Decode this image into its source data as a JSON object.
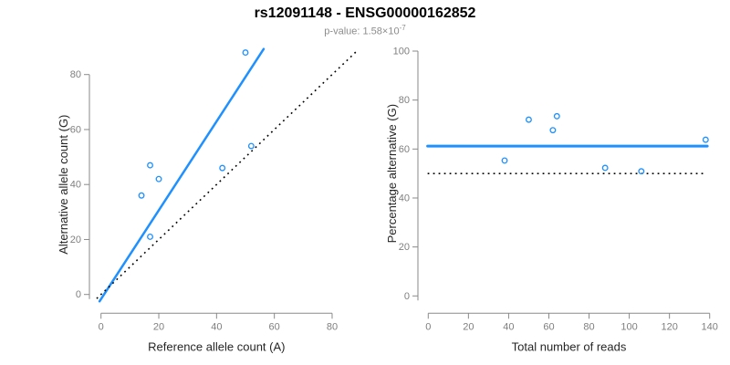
{
  "title": "rs12091148 - ENSG00000162852",
  "subtitle": {
    "text": "p-value: 1.58×10",
    "exponent": "-7"
  },
  "colors": {
    "accent_blue": "#1E90FF",
    "dotted_black": "#000000",
    "axis_line_gray": "#8a8a8a",
    "tick_label_gray": "#7f7f7f",
    "axis_title_dark": "#262626",
    "title_black": "#000000",
    "subtitle_gray": "#8c8c8c"
  },
  "chart_data": [
    {
      "type": "scatter",
      "panel": "left",
      "xlabel": "Reference allele count (A)",
      "ylabel": "Alternative allele count (G)",
      "xticks": [
        0,
        20,
        40,
        60,
        80
      ],
      "yticks": [
        0,
        20,
        40,
        60,
        80
      ],
      "xlim": [
        0,
        80
      ],
      "ylim": [
        0,
        80
      ],
      "grid": false,
      "points": [
        [
          14,
          36
        ],
        [
          17,
          47
        ],
        [
          20,
          42
        ],
        [
          17,
          21
        ],
        [
          42,
          46
        ],
        [
          52,
          54
        ],
        [
          50,
          88
        ]
      ],
      "lines": [
        {
          "name": "fit-line",
          "style": "solid",
          "color": "#1E90FF",
          "desc": "fitted allelic ratio, slope ~1.6",
          "endpoints": [
            [
              -0.5,
              -2.5
            ],
            [
              56.3,
              89.3
            ]
          ]
        },
        {
          "name": "identity-line",
          "style": "dotted",
          "color": "#000000",
          "desc": "y = x balanced-expression reference",
          "endpoints": [
            [
              -1.5,
              -1.5
            ],
            [
              88.3,
              88.3
            ]
          ]
        }
      ]
    },
    {
      "type": "scatter",
      "panel": "right",
      "xlabel": "Total number of reads",
      "ylabel": "Percentage alternative (G)",
      "xticks": [
        0,
        20,
        40,
        60,
        80,
        100,
        120,
        140
      ],
      "yticks": [
        0,
        20,
        40,
        60,
        80,
        100
      ],
      "xlim": [
        0,
        140
      ],
      "ylim": [
        0,
        100
      ],
      "grid": false,
      "points": [
        [
          50,
          72
        ],
        [
          64,
          73.4
        ],
        [
          62,
          67.7
        ],
        [
          38,
          55.3
        ],
        [
          88,
          52.3
        ],
        [
          106,
          50.9
        ],
        [
          138,
          63.8
        ]
      ],
      "lines": [
        {
          "name": "fit-line",
          "style": "solid",
          "color": "#1E90FF",
          "desc": "fitted alternative-allele percentage ~61%",
          "endpoints": [
            [
              -0.3,
              61.2
            ],
            [
              138.8,
              61.2
            ]
          ]
        },
        {
          "name": "null-line",
          "style": "dotted",
          "color": "#000000",
          "desc": "50% null expectation",
          "endpoints": [
            [
              -0.3,
              50
            ],
            [
              138.2,
              50
            ]
          ]
        }
      ]
    }
  ]
}
